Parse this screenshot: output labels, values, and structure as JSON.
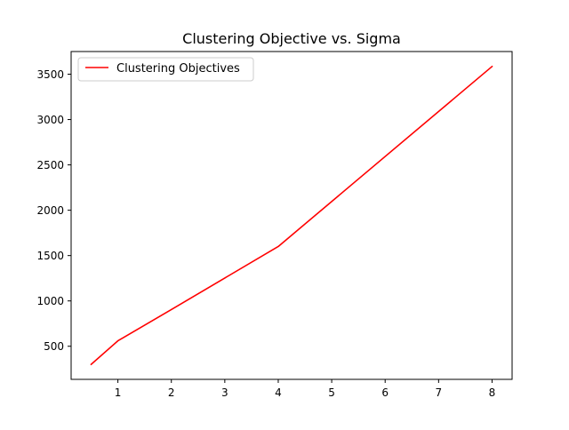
{
  "chart_data": {
    "type": "line",
    "title": "Clustering Objective vs. Sigma",
    "xlabel": "",
    "ylabel": "",
    "x": [
      0.5,
      1,
      2,
      4,
      8
    ],
    "series": [
      {
        "name": "Clustering Objectives",
        "color": "#ff0000",
        "values": [
          300,
          560,
          905,
          1600,
          3585
        ]
      }
    ],
    "xlim": [
      0.125,
      8.375
    ],
    "ylim": [
      135,
      3750
    ],
    "xticks": [
      1,
      2,
      3,
      4,
      5,
      6,
      7,
      8
    ],
    "yticks": [
      500,
      1000,
      1500,
      2000,
      2500,
      3000,
      3500
    ],
    "xtick_labels": [
      "1",
      "2",
      "3",
      "4",
      "5",
      "6",
      "7",
      "8"
    ],
    "ytick_labels": [
      "500",
      "1000",
      "1500",
      "2000",
      "2500",
      "3000",
      "3500"
    ],
    "grid": false,
    "legend_position": "upper-left"
  }
}
